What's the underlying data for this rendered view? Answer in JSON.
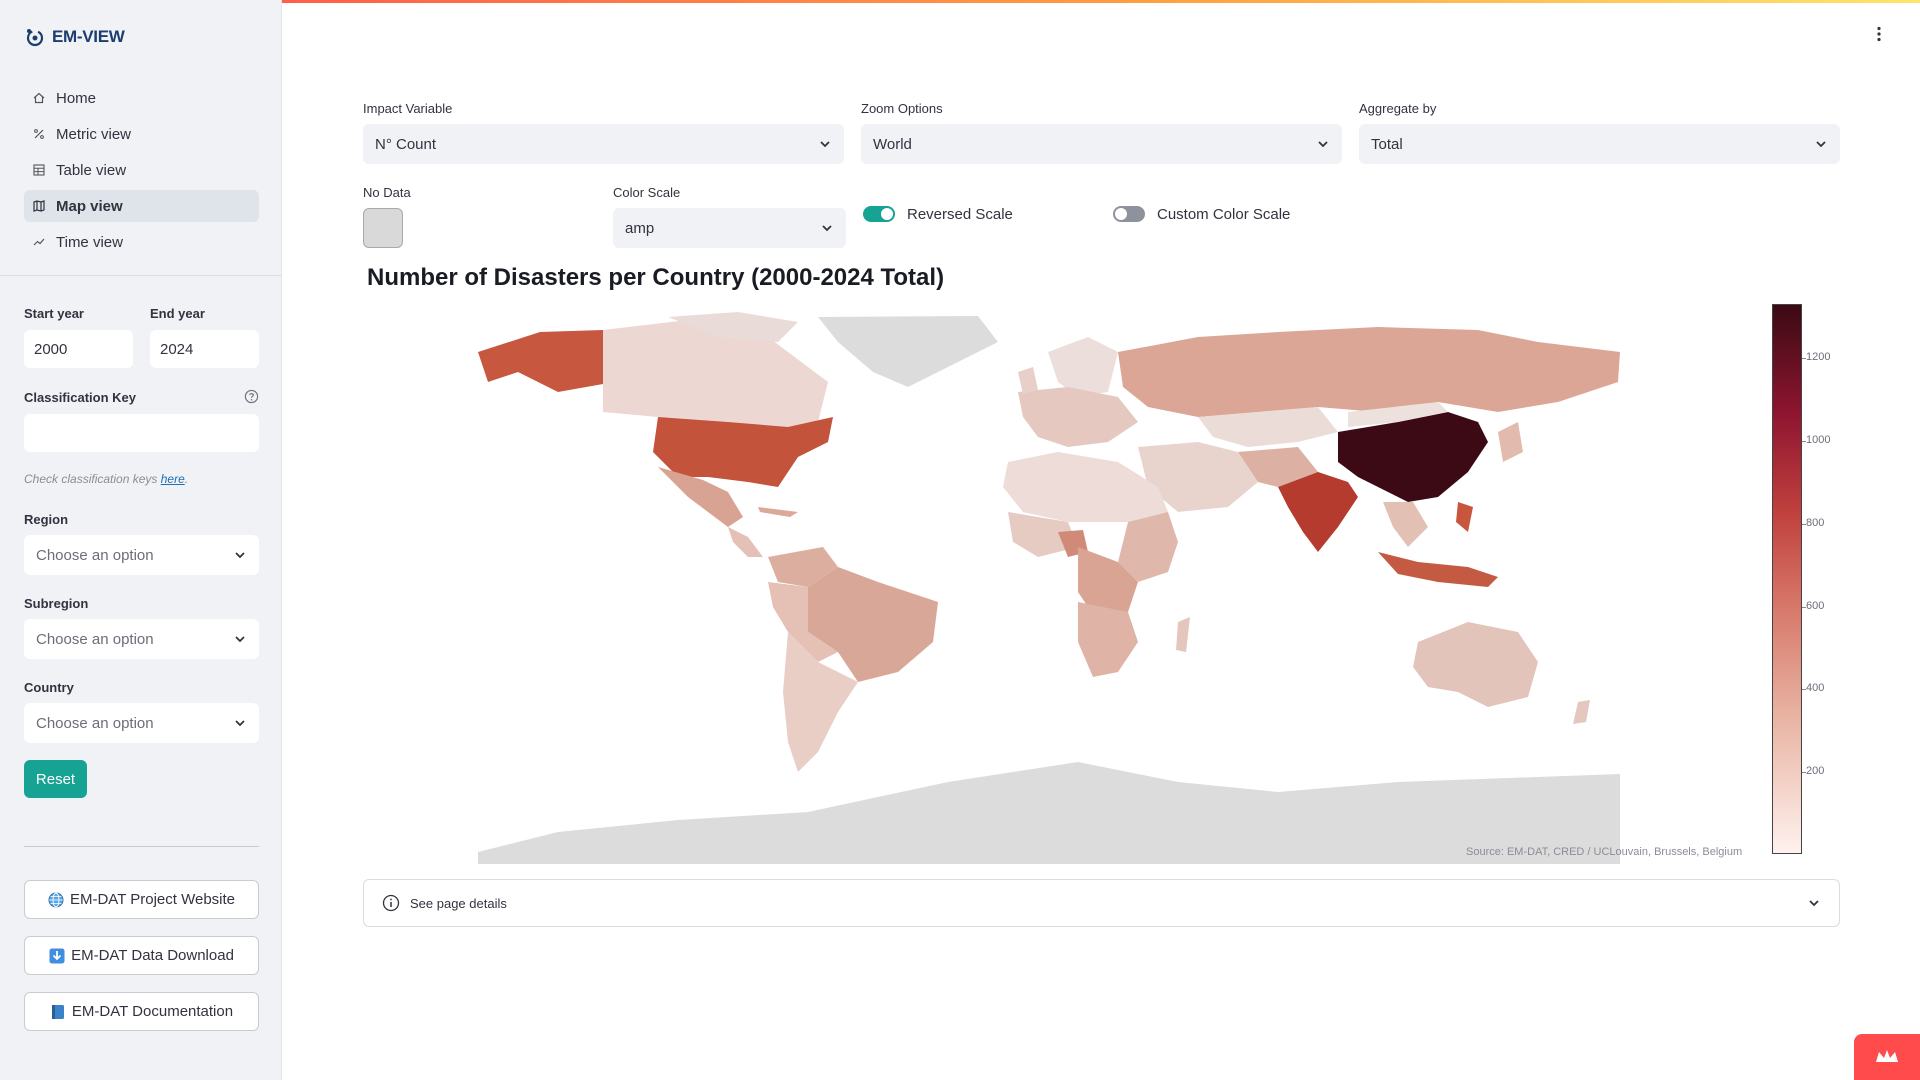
{
  "app": {
    "name": "EM-VIEW"
  },
  "sidebar": {
    "nav": [
      {
        "label": "Home",
        "icon": "home-icon"
      },
      {
        "label": "Metric view",
        "icon": "percent-icon"
      },
      {
        "label": "Table view",
        "icon": "table-icon"
      },
      {
        "label": "Map view",
        "icon": "map-icon",
        "active": true
      },
      {
        "label": "Time view",
        "icon": "trend-icon"
      }
    ],
    "start_year_label": "Start year",
    "start_year_value": "2000",
    "end_year_label": "End year",
    "end_year_value": "2024",
    "classification_label": "Classification Key",
    "classification_value": "",
    "hint_text": "Check classification keys ",
    "hint_link": "here",
    "hint_end": ".",
    "region_label": "Region",
    "region_placeholder": "Choose an option",
    "subregion_label": "Subregion",
    "subregion_placeholder": "Choose an option",
    "country_label": "Country",
    "country_placeholder": "Choose an option",
    "reset_label": "Reset",
    "links": [
      {
        "label": "EM-DAT Project Website",
        "icon": "globe-icon"
      },
      {
        "label": "EM-DAT Data Download",
        "icon": "download-icon"
      },
      {
        "label": "EM-DAT Documentation",
        "icon": "book-icon"
      }
    ]
  },
  "controls": {
    "impact_label": "Impact Variable",
    "impact_value": "N° Count",
    "zoom_label": "Zoom Options",
    "zoom_value": "World",
    "aggregate_label": "Aggregate by",
    "aggregate_value": "Total",
    "nodata_label": "No Data",
    "nodata_color": "#d9d9d9",
    "colorscale_label": "Color Scale",
    "colorscale_value": "amp",
    "reversed_label": "Reversed Scale",
    "reversed_on": true,
    "custom_label": "Custom Color Scale",
    "custom_on": false
  },
  "chart": {
    "title": "Number of Disasters per Country (2000-2024 Total)",
    "source": "Source: EM-DAT, CRED / UCLouvain, Brussels, Belgium",
    "colorbar_ticks": [
      "1200",
      "1000",
      "800",
      "600",
      "400",
      "200"
    ]
  },
  "chart_data": {
    "type": "heatmap",
    "title": "Number of Disasters per Country (2000-2024 Total)",
    "colorscale": "amp",
    "reversed": true,
    "colorbar_range": [
      0,
      1320
    ],
    "colorbar_ticks": [
      200,
      400,
      600,
      800,
      1000,
      1200
    ]
  },
  "details": {
    "label": "See page details"
  },
  "colors": {
    "accent": "#16a394",
    "sidebar_bg": "#f0f2f6"
  }
}
